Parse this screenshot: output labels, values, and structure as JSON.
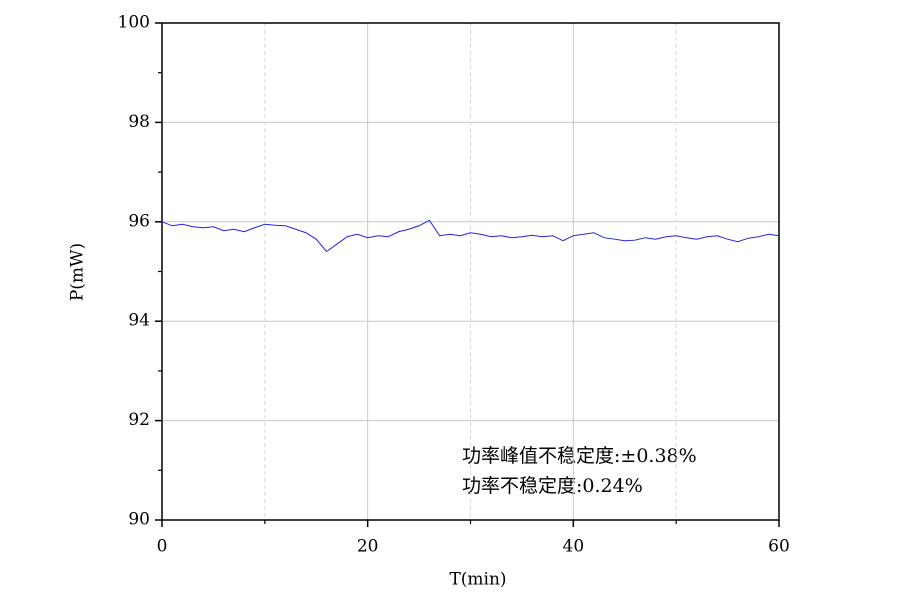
{
  "chart_data": {
    "type": "line",
    "xlabel": "T(min)",
    "ylabel": "P(mW)",
    "annotations": [
      "功率峰值不稳定度:±0.38%",
      "功率不稳定度:0.24%"
    ],
    "x": [
      0,
      1,
      2,
      3,
      4,
      5,
      6,
      7,
      8,
      9,
      10,
      11,
      12,
      13,
      14,
      15,
      16,
      17,
      18,
      19,
      20,
      21,
      22,
      23,
      24,
      25,
      26,
      27,
      28,
      29,
      30,
      31,
      32,
      33,
      34,
      35,
      36,
      37,
      38,
      39,
      40,
      41,
      42,
      43,
      44,
      45,
      46,
      47,
      48,
      49,
      50,
      51,
      52,
      53,
      54,
      55,
      56,
      57,
      58,
      59,
      60
    ],
    "series": [
      {
        "color": "#2424e0",
        "values": [
          96.0,
          95.92,
          95.95,
          95.9,
          95.88,
          95.9,
          95.82,
          95.85,
          95.8,
          95.88,
          95.95,
          95.93,
          95.92,
          95.85,
          95.78,
          95.65,
          95.4,
          95.55,
          95.7,
          95.75,
          95.68,
          95.72,
          95.7,
          95.8,
          95.85,
          95.92,
          96.03,
          95.72,
          95.75,
          95.72,
          95.78,
          95.75,
          95.7,
          95.72,
          95.68,
          95.7,
          95.73,
          95.7,
          95.72,
          95.62,
          95.72,
          95.75,
          95.78,
          95.68,
          95.65,
          95.62,
          95.63,
          95.68,
          95.65,
          95.7,
          95.72,
          95.68,
          95.65,
          95.7,
          95.72,
          95.65,
          95.6,
          95.67,
          95.7,
          95.75,
          95.72
        ]
      }
    ],
    "xlim": [
      0,
      60
    ],
    "xticks": [
      0,
      20,
      40,
      60
    ],
    "xminorticks": [
      10,
      30,
      50
    ],
    "ylim": [
      90,
      100
    ],
    "yticks": [
      90,
      92,
      94,
      96,
      98,
      100
    ],
    "yminorticks": [
      91,
      93,
      95,
      97,
      99
    ],
    "grid": true
  }
}
